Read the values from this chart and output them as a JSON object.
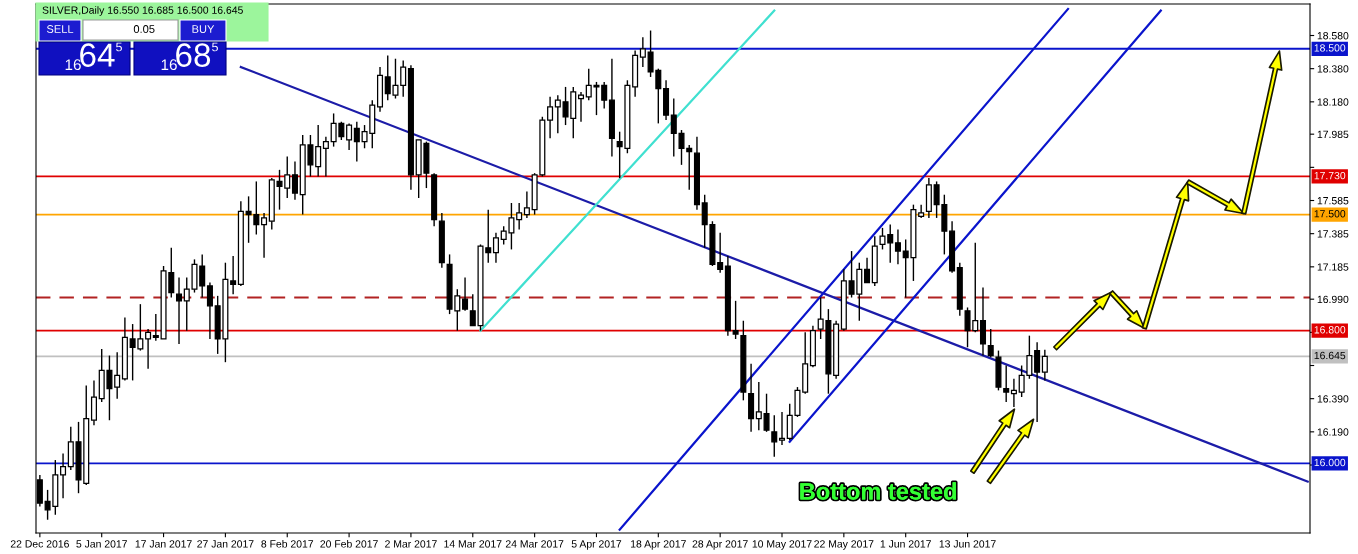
{
  "chart_data": {
    "type": "candlestick",
    "title": "SILVER,Daily 16.550 16.685 16.500 16.645",
    "annotations": [
      "Bottom tested",
      "SELL",
      "0.05",
      "BUY",
      "16",
      "64",
      "5",
      "16",
      "68",
      "5"
    ],
    "categories": [
      "22 Dec 2016",
      null,
      null,
      null,
      null,
      null,
      null,
      null,
      "5 Jan 2017",
      null,
      null,
      null,
      null,
      null,
      null,
      null,
      "17 Jan 2017",
      null,
      null,
      null,
      null,
      null,
      null,
      null,
      "27 Jan 2017",
      null,
      null,
      null,
      null,
      null,
      null,
      null,
      "8 Feb 2017",
      null,
      null,
      null,
      null,
      null,
      null,
      null,
      "20 Feb 2017",
      null,
      null,
      null,
      null,
      null,
      null,
      null,
      "2 Mar 2017",
      null,
      null,
      null,
      null,
      null,
      null,
      null,
      "14 Mar 2017",
      null,
      null,
      null,
      null,
      null,
      null,
      null,
      "24 Mar 2017",
      null,
      null,
      null,
      null,
      null,
      null,
      null,
      "5 Apr 2017",
      null,
      null,
      null,
      null,
      null,
      null,
      null,
      "18 Apr 2017",
      null,
      null,
      null,
      null,
      null,
      null,
      null,
      "28 Apr 2017",
      null,
      null,
      null,
      null,
      null,
      null,
      null,
      "10 May 2017",
      null,
      null,
      null,
      null,
      null,
      null,
      null,
      "22 May 2017",
      null,
      null,
      null,
      null,
      null,
      null,
      null,
      "1 Jun 2017",
      null,
      null,
      null,
      null,
      null,
      null,
      null,
      "13 Jun 2017",
      null,
      null,
      null,
      null,
      null,
      null,
      null,
      null,
      null,
      null,
      null,
      null,
      null,
      null,
      null,
      null,
      null,
      null,
      null,
      null,
      null,
      null,
      null,
      null,
      null,
      null,
      null,
      null,
      null,
      null,
      null,
      null,
      null,
      null,
      null,
      null,
      null,
      null,
      null,
      null,
      null,
      null,
      null,
      null
    ],
    "ohlc": [
      [
        15.9,
        15.93,
        15.74,
        15.76
      ],
      [
        15.77,
        15.84,
        15.66,
        15.72
      ],
      [
        15.74,
        16.02,
        15.69,
        15.93
      ],
      [
        15.93,
        16.06,
        15.79,
        15.98
      ],
      [
        15.98,
        16.22,
        15.96,
        16.13
      ],
      [
        16.13,
        16.25,
        15.82,
        15.9
      ],
      [
        15.88,
        16.47,
        15.87,
        16.27
      ],
      [
        16.26,
        16.5,
        16.23,
        16.4
      ],
      [
        16.39,
        16.69,
        16.37,
        16.56
      ],
      [
        16.56,
        16.65,
        16.26,
        16.45
      ],
      [
        16.46,
        16.67,
        16.39,
        16.53
      ],
      [
        16.51,
        16.88,
        16.5,
        16.76
      ],
      [
        16.75,
        16.84,
        16.5,
        16.7
      ],
      [
        16.69,
        16.96,
        16.68,
        16.75
      ],
      [
        16.75,
        16.81,
        16.57,
        16.79
      ],
      [
        16.77,
        16.9,
        16.74,
        16.76
      ],
      [
        16.75,
        17.19,
        16.75,
        17.16
      ],
      [
        17.15,
        17.3,
        17.0,
        17.03
      ],
      [
        17.02,
        17.12,
        16.72,
        16.98
      ],
      [
        16.98,
        17.12,
        16.8,
        17.05
      ],
      [
        17.05,
        17.23,
        17.03,
        17.2
      ],
      [
        17.19,
        17.26,
        17.0,
        17.07
      ],
      [
        17.07,
        17.09,
        16.75,
        16.95
      ],
      [
        16.95,
        17.01,
        16.66,
        16.75
      ],
      [
        16.75,
        17.21,
        16.61,
        17.11
      ],
      [
        17.1,
        17.25,
        17.02,
        17.08
      ],
      [
        17.08,
        17.58,
        17.07,
        17.52
      ],
      [
        17.52,
        17.61,
        17.33,
        17.5
      ],
      [
        17.5,
        17.7,
        17.38,
        17.44
      ],
      [
        17.44,
        17.51,
        17.24,
        17.48
      ],
      [
        17.46,
        17.72,
        17.41,
        17.71
      ],
      [
        17.7,
        17.77,
        17.53,
        17.67
      ],
      [
        17.66,
        17.85,
        17.6,
        17.74
      ],
      [
        17.74,
        17.82,
        17.59,
        17.63
      ],
      [
        17.62,
        17.98,
        17.5,
        17.92
      ],
      [
        17.92,
        17.98,
        17.73,
        17.8
      ],
      [
        17.79,
        18.04,
        17.73,
        17.91
      ],
      [
        17.9,
        17.97,
        17.73,
        17.94
      ],
      [
        17.94,
        18.11,
        17.91,
        18.05
      ],
      [
        18.05,
        18.06,
        17.95,
        17.97
      ],
      [
        17.95,
        18.05,
        17.89,
        18.04
      ],
      [
        18.02,
        18.06,
        17.82,
        17.94
      ],
      [
        17.94,
        18.04,
        17.9,
        18.0
      ],
      [
        17.99,
        18.19,
        17.9,
        18.16
      ],
      [
        18.15,
        18.39,
        18.12,
        18.34
      ],
      [
        18.33,
        18.46,
        18.19,
        18.23
      ],
      [
        18.22,
        18.44,
        18.2,
        18.28
      ],
      [
        18.28,
        18.43,
        18.21,
        18.39
      ],
      [
        18.38,
        18.4,
        17.65,
        17.74
      ],
      [
        17.74,
        17.95,
        17.6,
        17.95
      ],
      [
        17.93,
        17.94,
        17.66,
        17.75
      ],
      [
        17.74,
        17.75,
        17.43,
        17.47
      ],
      [
        17.46,
        17.51,
        17.18,
        17.21
      ],
      [
        17.2,
        17.26,
        16.9,
        16.93
      ],
      [
        16.92,
        17.05,
        16.8,
        17.01
      ],
      [
        16.99,
        17.12,
        16.92,
        16.93
      ],
      [
        16.92,
        17.02,
        16.83,
        16.83
      ],
      [
        16.83,
        17.32,
        16.8,
        17.31
      ],
      [
        17.3,
        17.53,
        17.21,
        17.27
      ],
      [
        17.27,
        17.39,
        17.21,
        17.36
      ],
      [
        17.35,
        17.43,
        17.32,
        17.4
      ],
      [
        17.39,
        17.57,
        17.29,
        17.48
      ],
      [
        17.47,
        17.57,
        17.41,
        17.51
      ],
      [
        17.5,
        17.64,
        17.48,
        17.54
      ],
      [
        17.53,
        17.75,
        17.5,
        17.74
      ],
      [
        17.74,
        18.09,
        17.73,
        18.07
      ],
      [
        18.07,
        18.21,
        17.96,
        18.15
      ],
      [
        18.15,
        18.22,
        17.99,
        18.19
      ],
      [
        18.18,
        18.27,
        18.04,
        18.09
      ],
      [
        18.08,
        18.27,
        17.96,
        18.24
      ],
      [
        18.2,
        18.24,
        18.06,
        18.22
      ],
      [
        18.21,
        18.38,
        18.19,
        18.28
      ],
      [
        18.28,
        18.3,
        18.1,
        18.27
      ],
      [
        18.28,
        18.3,
        18.14,
        18.19
      ],
      [
        18.19,
        18.44,
        17.85,
        17.96
      ],
      [
        17.94,
        18.0,
        17.72,
        17.91
      ],
      [
        17.9,
        18.31,
        17.87,
        18.28
      ],
      [
        18.27,
        18.49,
        18.21,
        18.46
      ],
      [
        18.45,
        18.57,
        18.39,
        18.5
      ],
      [
        18.48,
        18.61,
        18.33,
        18.36
      ],
      [
        18.37,
        18.38,
        18.05,
        18.26
      ],
      [
        18.26,
        18.31,
        18.07,
        18.1
      ],
      [
        18.1,
        18.2,
        17.85,
        17.99
      ],
      [
        17.99,
        18.01,
        17.8,
        17.9
      ],
      [
        17.9,
        17.92,
        17.65,
        17.88
      ],
      [
        17.87,
        17.97,
        17.53,
        17.56
      ],
      [
        17.57,
        17.62,
        17.3,
        17.44
      ],
      [
        17.44,
        17.46,
        17.19,
        17.2
      ],
      [
        17.21,
        17.39,
        17.15,
        17.17
      ],
      [
        17.19,
        17.25,
        16.77,
        16.8
      ],
      [
        16.8,
        16.98,
        16.75,
        16.78
      ],
      [
        16.77,
        16.86,
        16.38,
        16.43
      ],
      [
        16.42,
        16.6,
        16.19,
        16.27
      ],
      [
        16.27,
        16.49,
        16.2,
        16.31
      ],
      [
        16.3,
        16.42,
        16.19,
        16.2
      ],
      [
        16.19,
        16.29,
        16.04,
        16.13
      ],
      [
        16.14,
        16.31,
        16.11,
        16.15
      ],
      [
        16.15,
        16.36,
        16.14,
        16.29
      ],
      [
        16.29,
        16.46,
        16.28,
        16.44
      ],
      [
        16.43,
        16.79,
        16.42,
        16.6
      ],
      [
        16.59,
        16.83,
        16.58,
        16.8
      ],
      [
        16.81,
        17.0,
        16.75,
        16.87
      ],
      [
        16.86,
        16.93,
        16.42,
        16.54
      ],
      [
        16.53,
        16.86,
        16.51,
        16.84
      ],
      [
        16.81,
        17.17,
        16.8,
        17.1
      ],
      [
        17.1,
        17.28,
        17.0,
        17.02
      ],
      [
        17.02,
        17.21,
        16.86,
        17.17
      ],
      [
        17.17,
        17.24,
        17.09,
        17.09
      ],
      [
        17.09,
        17.37,
        17.07,
        17.31
      ],
      [
        17.32,
        17.42,
        17.29,
        17.37
      ],
      [
        17.38,
        17.44,
        17.21,
        17.33
      ],
      [
        17.33,
        17.41,
        17.2,
        17.28
      ],
      [
        17.28,
        17.35,
        17.0,
        17.24
      ],
      [
        17.24,
        17.56,
        17.1,
        17.53
      ],
      [
        17.49,
        17.56,
        17.48,
        17.51
      ],
      [
        17.52,
        17.72,
        17.48,
        17.68
      ],
      [
        17.68,
        17.7,
        17.48,
        17.56
      ],
      [
        17.56,
        17.62,
        17.26,
        17.4
      ],
      [
        17.4,
        17.46,
        17.15,
        17.16
      ],
      [
        17.18,
        17.21,
        16.89,
        16.93
      ],
      [
        16.92,
        16.94,
        16.7,
        16.8
      ],
      [
        16.8,
        17.33,
        16.79,
        16.86
      ],
      [
        16.86,
        17.06,
        16.65,
        16.72
      ],
      [
        16.71,
        16.81,
        16.64,
        16.65
      ],
      [
        16.64,
        16.68,
        16.44,
        16.46
      ],
      [
        16.45,
        16.59,
        16.37,
        16.43
      ],
      [
        16.42,
        16.51,
        16.34,
        16.44
      ],
      [
        16.43,
        16.59,
        16.4,
        16.53
      ],
      [
        16.53,
        16.77,
        16.51,
        16.65
      ],
      [
        16.68,
        16.73,
        16.25,
        16.55
      ],
      [
        16.55,
        16.685,
        16.5,
        16.645
      ],
      null,
      null,
      null,
      null,
      null,
      null,
      null,
      null,
      null,
      null,
      null,
      null,
      null,
      null,
      null,
      null,
      null,
      null,
      null,
      null,
      null,
      null,
      null,
      null,
      null,
      null,
      null,
      null,
      null,
      null,
      null,
      null,
      null,
      null
    ],
    "series": [
      {
        "type": "line",
        "color": "#1c1ca8",
        "values": [
          null,
          null,
          null,
          null,
          null,
          null,
          null,
          null,
          null,
          null,
          null,
          null,
          null,
          null,
          null,
          null,
          null,
          null,
          null,
          null,
          null,
          null,
          null,
          null,
          null,
          null,
          18.39,
          null,
          null,
          null,
          null,
          null,
          null,
          null,
          null,
          null,
          null,
          null,
          null,
          null,
          null,
          null,
          null,
          null,
          null,
          null,
          null,
          null,
          null,
          null,
          null,
          null,
          null,
          null,
          null,
          null,
          null,
          null,
          null,
          null,
          null,
          null,
          null,
          null,
          null,
          null,
          null,
          null,
          null,
          null,
          null,
          null,
          null,
          null,
          null,
          null,
          null,
          null,
          null,
          null,
          null,
          null,
          null,
          null,
          null,
          null,
          null,
          null,
          null,
          null,
          null,
          null,
          null,
          null,
          null,
          null,
          null,
          null,
          null,
          null,
          null,
          null,
          null,
          null,
          null,
          null,
          null,
          null,
          null,
          null,
          null,
          null,
          null,
          null,
          null,
          null,
          null,
          null,
          null,
          null,
          null,
          null,
          null,
          null,
          null,
          null,
          null,
          null,
          null,
          null,
          null,
          null,
          null,
          null,
          null,
          null,
          null,
          null,
          null,
          null,
          null,
          null,
          null,
          null,
          null,
          null,
          null,
          null,
          null,
          null,
          null,
          null,
          null,
          null,
          null,
          null,
          null,
          null,
          null,
          null,
          null,
          null,
          null,
          null,
          15.89
        ]
      },
      {
        "type": "line",
        "color": "#40e0d0",
        "values": [
          null,
          null,
          null,
          null,
          null,
          null,
          null,
          null,
          null,
          null,
          null,
          null,
          null,
          null,
          null,
          null,
          null,
          null,
          null,
          null,
          null,
          null,
          null,
          null,
          null,
          null,
          null,
          null,
          null,
          null,
          null,
          null,
          null,
          null,
          null,
          null,
          null,
          null,
          null,
          null,
          null,
          null,
          null,
          null,
          null,
          null,
          null,
          null,
          null,
          null,
          null,
          null,
          null,
          null,
          null,
          null,
          null,
          16.8,
          null,
          null,
          null,
          null,
          null,
          null,
          null,
          null,
          null,
          null,
          null,
          null,
          null,
          null,
          null,
          null,
          null,
          null,
          null,
          null,
          null,
          null,
          null,
          null,
          null,
          null,
          null,
          null,
          null,
          null,
          null,
          null,
          null,
          null,
          null,
          null,
          null,
          18.73,
          null,
          null,
          null,
          null,
          null,
          null,
          null,
          null,
          null,
          null,
          null,
          null,
          null,
          null,
          null,
          null,
          null,
          null,
          null,
          null,
          null,
          null,
          null,
          null,
          null,
          null,
          null,
          null,
          null,
          null,
          null,
          null,
          null,
          null,
          null,
          null,
          null,
          null,
          null,
          null,
          null,
          null,
          null,
          null,
          null,
          null,
          null,
          null,
          null,
          null,
          null,
          null,
          null,
          null,
          null,
          null,
          null,
          null,
          null,
          null,
          null,
          null,
          null,
          null,
          null,
          null,
          null,
          null,
          null
        ]
      },
      {
        "type": "line",
        "color": "#0a14cc",
        "values": [
          null,
          null,
          null,
          null,
          null,
          null,
          null,
          null,
          null,
          null,
          null,
          null,
          null,
          null,
          null,
          null,
          null,
          null,
          null,
          null,
          null,
          null,
          null,
          null,
          null,
          null,
          null,
          null,
          null,
          null,
          null,
          null,
          null,
          null,
          null,
          null,
          null,
          null,
          null,
          null,
          null,
          null,
          null,
          null,
          null,
          null,
          null,
          null,
          null,
          null,
          null,
          null,
          null,
          null,
          null,
          null,
          null,
          null,
          null,
          null,
          null,
          null,
          null,
          null,
          null,
          null,
          null,
          null,
          null,
          null,
          null,
          null,
          null,
          null,
          null,
          15.6,
          null,
          null,
          null,
          null,
          null,
          null,
          null,
          null,
          null,
          null,
          null,
          null,
          null,
          null,
          null,
          null,
          null,
          null,
          null,
          null,
          null,
          null,
          null,
          null,
          null,
          null,
          null,
          null,
          null,
          null,
          null,
          null,
          null,
          null,
          null,
          null,
          null,
          null,
          null,
          null,
          null,
          null,
          null,
          null,
          null,
          null,
          null,
          null,
          null,
          null,
          null,
          null,
          null,
          null,
          null,
          null,
          null,
          18.74,
          null,
          null,
          null,
          null,
          null,
          null,
          null,
          null,
          null,
          null,
          null,
          null,
          null,
          null,
          null,
          null,
          null,
          null,
          null,
          null,
          null,
          null,
          null,
          null,
          null,
          null,
          null,
          null,
          null,
          null,
          null
        ]
      },
      {
        "type": "line",
        "color": "#0a14cc",
        "values": [
          null,
          null,
          null,
          null,
          null,
          null,
          null,
          null,
          null,
          null,
          null,
          null,
          null,
          null,
          null,
          null,
          null,
          null,
          null,
          null,
          null,
          null,
          null,
          null,
          null,
          null,
          null,
          null,
          null,
          null,
          null,
          null,
          null,
          null,
          null,
          null,
          null,
          null,
          null,
          null,
          null,
          null,
          null,
          null,
          null,
          null,
          null,
          null,
          null,
          null,
          null,
          null,
          null,
          null,
          null,
          null,
          null,
          null,
          null,
          null,
          null,
          null,
          null,
          null,
          null,
          null,
          null,
          null,
          null,
          null,
          null,
          null,
          null,
          null,
          null,
          null,
          null,
          null,
          null,
          null,
          null,
          null,
          null,
          null,
          null,
          null,
          null,
          null,
          null,
          null,
          null,
          null,
          null,
          null,
          null,
          null,
          null,
          16.13,
          null,
          null,
          null,
          null,
          null,
          null,
          null,
          null,
          null,
          null,
          null,
          null,
          null,
          null,
          null,
          null,
          null,
          null,
          null,
          null,
          null,
          null,
          null,
          null,
          null,
          null,
          null,
          null,
          null,
          null,
          null,
          null,
          null,
          null,
          null,
          null,
          null,
          null,
          null,
          null,
          null,
          null,
          null,
          null,
          null,
          null,
          null,
          18.73,
          null,
          null,
          null,
          null,
          null,
          null,
          null,
          null,
          null,
          null,
          null,
          null,
          null,
          null,
          null,
          null,
          null,
          null,
          null
        ]
      }
    ],
    "ylim": [
      15.58,
      18.77
    ],
    "yticks": [
      {
        "value": 15.99,
        "label": null
      },
      {
        "value": 16.19,
        "label": "16.190"
      },
      {
        "value": 16.39,
        "label": "16.390"
      },
      {
        "value": 16.59,
        "label": null
      },
      {
        "value": 16.79,
        "label": null
      },
      {
        "value": 16.99,
        "label": "16.990"
      },
      {
        "value": 17.185,
        "label": "17.185"
      },
      {
        "value": 17.385,
        "label": "17.385"
      },
      {
        "value": 17.585,
        "label": "17.585"
      },
      {
        "value": 17.785,
        "label": null
      },
      {
        "value": 17.985,
        "label": "17.985"
      },
      {
        "value": 18.18,
        "label": "18.180"
      },
      {
        "value": 18.38,
        "label": "18.380"
      },
      {
        "value": 18.58,
        "label": "18.580"
      }
    ],
    "ref_lines": [
      {
        "axis": "y",
        "value": 18.5,
        "label": "18.500",
        "color": "#0a14cc"
      },
      {
        "axis": "y",
        "value": 17.73,
        "label": "17.730",
        "color": "#e00000"
      },
      {
        "axis": "y",
        "value": 17.5,
        "label": "17.500",
        "color": "#ffa500"
      },
      {
        "axis": "y",
        "value": 17.0,
        "color": "#b22222",
        "line_style": "dashed"
      },
      {
        "axis": "y",
        "value": 16.8,
        "label": "16.800",
        "color": "#e00000"
      },
      {
        "axis": "y",
        "value": 16.645,
        "label": "16.645",
        "color": "#c0c0c0"
      },
      {
        "axis": "y",
        "value": 16.0,
        "label": "16.000",
        "color": "#0a14cc"
      }
    ]
  }
}
